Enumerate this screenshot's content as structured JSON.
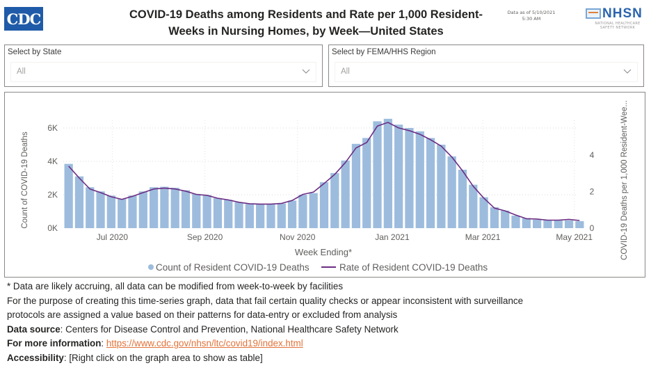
{
  "header": {
    "logo_left": "CDC",
    "title_line1": "COVID-19 Deaths among Residents and Rate per 1,000 Resident-",
    "title_line2": "Weeks in Nursing Homes, by Week—United States",
    "data_as_of_line1": "Data as of 5/10/2021",
    "data_as_of_line2": "5:30 AM",
    "logo_right": "NHSN",
    "logo_right_sub1": "NATIONAL HEALTHCARE",
    "logo_right_sub2": "SAFETY NETWORK"
  },
  "filters": {
    "state": {
      "label": "Select by State",
      "value": "All"
    },
    "region": {
      "label": "Select by FEMA/HHS Region",
      "value": "All"
    }
  },
  "chart_data": {
    "type": "bar",
    "combo": "bar+line",
    "title": "COVID-19 Deaths among Residents and Rate per 1,000 Resident-Weeks in Nursing Homes, by Week—United States",
    "xlabel": "Week Ending*",
    "ylabel": "Count of COVID-19 Deaths",
    "y2label": "COVID-19 Deaths per 1,000 Resident-Wee...",
    "ylim": [
      0,
      7000
    ],
    "y2lim": [
      0,
      7.76
    ],
    "yticks": [
      "0K",
      "2K",
      "4K",
      "6K"
    ],
    "ytick_values": [
      0,
      2000,
      4000,
      6000
    ],
    "y2ticks": [
      "0",
      "2",
      "4"
    ],
    "y2tick_values": [
      0,
      2,
      4
    ],
    "xticks": [
      {
        "label": "Jul 2020",
        "index": 4.6
      },
      {
        "label": "Sep 2020",
        "index": 13.3
      },
      {
        "label": "Nov 2020",
        "index": 22.0
      },
      {
        "label": "Jan 2021",
        "index": 30.9
      },
      {
        "label": "Mar 2021",
        "index": 39.4
      },
      {
        "label": "May 2021",
        "index": 48.0
      }
    ],
    "grid": true,
    "legend": "bottom-center",
    "series": [
      {
        "name": "Count of Resident COVID-19 Deaths",
        "type": "bar",
        "axis": "left",
        "color": "#9dbcdd",
        "values": [
          3850,
          3100,
          2450,
          2200,
          1950,
          1750,
          1950,
          2200,
          2450,
          2480,
          2420,
          2270,
          2050,
          1980,
          1800,
          1700,
          1550,
          1450,
          1430,
          1430,
          1480,
          1650,
          2000,
          2100,
          2750,
          3300,
          4050,
          5050,
          5400,
          6400,
          6550,
          6200,
          6000,
          5800,
          5400,
          5000,
          4300,
          3500,
          2600,
          1850,
          1250,
          1050,
          750,
          600,
          500,
          480,
          460,
          460,
          420
        ]
      },
      {
        "name": "Rate of Resident COVID-19 Deaths",
        "type": "line",
        "axis": "right",
        "color": "#6b2d83",
        "values": [
          3.4,
          2.75,
          2.15,
          1.95,
          1.72,
          1.58,
          1.75,
          1.95,
          2.15,
          2.2,
          2.15,
          2.03,
          1.85,
          1.8,
          1.64,
          1.55,
          1.42,
          1.34,
          1.32,
          1.32,
          1.36,
          1.52,
          1.85,
          1.98,
          2.45,
          2.95,
          3.6,
          4.4,
          4.7,
          5.6,
          5.8,
          5.5,
          5.35,
          5.15,
          4.85,
          4.5,
          3.9,
          3.15,
          2.3,
          1.65,
          1.1,
          0.95,
          0.72,
          0.52,
          0.5,
          0.44,
          0.44,
          0.48,
          0.42
        ]
      }
    ]
  },
  "footer": {
    "note1": "* Data are likely accruing, all data can be modified from week-to-week by facilities",
    "note2_line1": "For the purpose of creating this time-series graph, data that fail certain quality checks or appear inconsistent with surveillance",
    "note2_line2": "protocols are assigned a value based on their patterns for data-entry or excluded from analysis",
    "source_label": "Data source",
    "source_text": ": Centers for Disease Control and Prevention, National Healthcare Safety Network",
    "info_label": "For more information",
    "info_sep": ": ",
    "info_link": "https://www.cdc.gov/nhsn/ltc/covid19/index.html",
    "access_label": "Accessibility",
    "access_text": ": [Right click on the graph area to show as table]"
  }
}
